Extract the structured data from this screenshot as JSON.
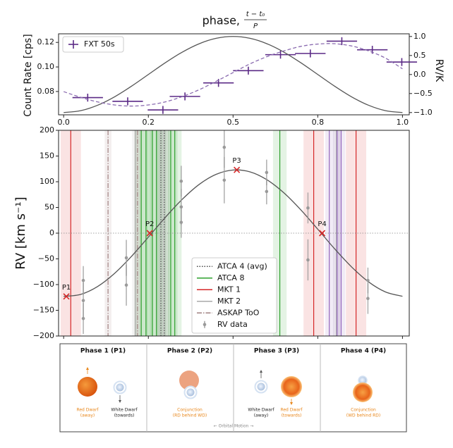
{
  "chart_data": [
    {
      "type": "errorbar",
      "title": "phase,",
      "title_fraction": {
        "numerator": "t − t₀",
        "denominator": "P"
      },
      "ylabel": "Count Rate [cps]",
      "y2label": "RV/K",
      "xlim": [
        -0.015,
        1.02
      ],
      "xticks": [
        {
          "value": 0,
          "label": "0.0"
        },
        {
          "value": 0.25,
          "label": "0.2"
        },
        0.5,
        {
          "value": 0.75,
          "label": "0.8"
        },
        {
          "value": 1,
          "label": "1.0"
        }
      ],
      "ylim": [
        0.061,
        0.127
      ],
      "yticks": [
        0.08,
        {
          "value": 0.1,
          "label": "0.10"
        },
        0.12
      ],
      "y2lim": [
        -1.06,
        1.07
      ],
      "y2ticks": [
        {
          "value": -1,
          "label": "−1.0"
        },
        {
          "value": -0.5,
          "label": "−0.5"
        },
        {
          "value": 0,
          "label": "0.0"
        },
        0.5,
        {
          "value": 1,
          "label": "1.0"
        }
      ],
      "legend": "upper left",
      "series": [
        {
          "name": "FXT 50s",
          "color": "#5b2a86",
          "x": [
            0.071,
            0.189,
            0.293,
            0.358,
            0.457,
            0.545,
            0.64,
            0.728,
            0.821,
            0.911,
            0.998
          ],
          "x_errors": [
            0.045,
            0.045,
            0.045,
            0.045,
            0.045,
            0.045,
            0.045,
            0.045,
            0.045,
            0.045,
            0.045
          ],
          "values": [
            0.075,
            0.072,
            0.065,
            0.076,
            0.087,
            0.097,
            0.11,
            0.111,
            0.121,
            0.114,
            0.104
          ],
          "errors": [
            0.0015,
            0.0015,
            0.0015,
            0.0015,
            0.0015,
            0.0015,
            0.0015,
            0.0015,
            0.0015,
            0.0015,
            0.0015
          ]
        },
        {
          "color": "#555555",
          "style": "solid",
          "axis": "y2",
          "x": [
            0,
            0.05,
            0.1,
            0.15,
            0.2,
            0.25,
            0.3,
            0.35,
            0.4,
            0.45,
            0.5,
            0.55,
            0.6,
            0.65,
            0.7,
            0.75,
            0.8,
            0.85,
            0.9,
            0.95,
            1
          ],
          "values": [
            -1,
            -0.951,
            -0.809,
            -0.588,
            -0.309,
            0,
            0.309,
            0.588,
            0.809,
            0.951,
            1,
            0.951,
            0.809,
            0.588,
            0.309,
            0,
            -0.309,
            -0.588,
            -0.809,
            -0.951,
            -1
          ]
        },
        {
          "color": "#8a6bb0",
          "style": "dashed",
          "axis": "y2",
          "x": [
            0,
            0.05,
            0.1,
            0.15,
            0.2,
            0.25,
            0.3,
            0.35,
            0.4,
            0.45,
            0.5,
            0.55,
            0.6,
            0.65,
            0.7,
            0.75,
            0.8,
            0.85,
            0.9,
            0.95,
            1
          ],
          "values": [
            -0.45,
            -0.6,
            -0.72,
            -0.8,
            -0.83,
            -0.8,
            -0.72,
            -0.58,
            -0.4,
            -0.18,
            0.05,
            0.28,
            0.47,
            0.62,
            0.74,
            0.8,
            0.81,
            0.75,
            0.62,
            0.43,
            0.15
          ]
        }
      ]
    },
    {
      "type": "line",
      "ylabel": "RV [km s⁻¹]",
      "xlim": [
        -0.015,
        1.02
      ],
      "ylim": [
        -200,
        200
      ],
      "yticks": [
        {
          "value": -200,
          "label": "−200"
        },
        {
          "value": -150,
          "label": "−150"
        },
        {
          "value": -100,
          "label": "−100"
        },
        {
          "value": -50,
          "label": "−50"
        },
        0,
        50,
        100,
        150,
        200
      ],
      "legend": "lower center",
      "series": [
        {
          "color": "#555555",
          "x": [
            0,
            0.05,
            0.1,
            0.15,
            0.2,
            0.25,
            0.3,
            0.35,
            0.4,
            0.45,
            0.5,
            0.55,
            0.6,
            0.65,
            0.7,
            0.75,
            0.8,
            0.85,
            0.9,
            0.95,
            1
          ],
          "values": [
            -122.8,
            -119.1,
            -103.8,
            -78.4,
            -45.3,
            -7.7,
            30.6,
            65.8,
            94.8,
            114.4,
            122.8,
            119.2,
            103.8,
            78.4,
            45.3,
            7.7,
            -30.6,
            -65.8,
            -94.8,
            -114.4,
            -122.8
          ]
        }
      ],
      "markers": [
        {
          "name": "ATCA 4 (avg)",
          "color": "#4a4a4a",
          "style": "dotted",
          "band_halfwidth": 0.015,
          "x": [
            0.287,
            0.297
          ]
        },
        {
          "name": "ATCA 8",
          "color": "#2ca02c",
          "style": "solid",
          "band_halfwidth": 0.02,
          "x": [
            0.229,
            0.243,
            0.262,
            0.274,
            0.316,
            0.328,
            0.638
          ]
        },
        {
          "name": "MKT 1",
          "color": "#d62728",
          "style": "solid",
          "band_halfwidth": 0.03,
          "x": [
            0.021,
            0.738,
            0.863
          ]
        },
        {
          "name": "MKT 2",
          "color": "#aaaaaa",
          "style": "solid",
          "band_halfwidth": 0.01,
          "x": [
            0.212,
            0.805
          ]
        },
        {
          "name": "ASKAP ToO",
          "color": "#a08080",
          "style": "dashdot",
          "band_halfwidth": 0.01,
          "x": [
            0.131,
            0.218
          ]
        },
        {
          "color": "#9467bd",
          "style": "solid",
          "band_halfwidth": 0.012,
          "x": [
            0.784,
            0.807,
            0.819
          ]
        }
      ],
      "rv_data": {
        "name": "RV data",
        "color": "#9a9a9a",
        "x": [
          0.058,
          0.058,
          0.058,
          0.185,
          0.185,
          0.347,
          0.347,
          0.347,
          0.474,
          0.474,
          0.599,
          0.599,
          0.721,
          0.721,
          0.898,
          0.898
        ],
        "values": [
          -92,
          -131,
          -166,
          -48,
          -101,
          101,
          51,
          21,
          167,
          103,
          118,
          81,
          49,
          -52,
          -92,
          -127
        ],
        "errors": [
          28,
          35,
          30,
          35,
          40,
          30,
          35,
          30,
          40,
          45,
          25,
          25,
          30,
          40,
          25,
          30
        ]
      },
      "points": {
        "color": "#d62728",
        "labels": [
          "P1",
          "P2",
          "P3",
          "P4"
        ],
        "x": [
          0.008,
          0.254,
          0.511,
          0.763
        ],
        "values": [
          -123,
          0,
          123,
          0
        ]
      }
    }
  ],
  "phase_panel": {
    "columns": [
      {
        "title": "Phase 1 (P1)",
        "labels": [
          {
            "lines": [
              "Red Dwarf",
              "(away)"
            ]
          },
          {
            "lines": [
              "White Dwarf",
              "(towards)"
            ]
          }
        ]
      },
      {
        "title": "Phase 2 (P2)",
        "labels": [
          {
            "lines": [
              "Conjunction",
              "(RD behind WD)"
            ]
          }
        ]
      },
      {
        "title": "Phase 3 (P3)",
        "labels": [
          {
            "lines": [
              "White Dwarf",
              "(away)"
            ]
          },
          {
            "lines": [
              "Red Dwarf",
              "(towards)"
            ]
          }
        ]
      },
      {
        "title": "Phase 4 (P4)",
        "labels": [
          {
            "lines": [
              "Conjunction",
              "(WD behind RD)"
            ]
          }
        ]
      }
    ],
    "footer": "← Orbital Motion →"
  }
}
